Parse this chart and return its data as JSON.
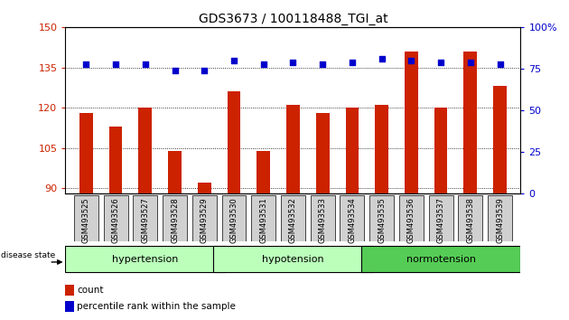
{
  "title": "GDS3673 / 100118488_TGI_at",
  "samples": [
    "GSM493525",
    "GSM493526",
    "GSM493527",
    "GSM493528",
    "GSM493529",
    "GSM493530",
    "GSM493531",
    "GSM493532",
    "GSM493533",
    "GSM493534",
    "GSM493535",
    "GSM493536",
    "GSM493537",
    "GSM493538",
    "GSM493539"
  ],
  "counts": [
    118,
    113,
    120,
    104,
    92,
    126,
    104,
    121,
    118,
    120,
    121,
    141,
    120,
    141,
    128
  ],
  "percentile": [
    78,
    78,
    78,
    74,
    74,
    80,
    78,
    79,
    78,
    79,
    81,
    80,
    79,
    79,
    78
  ],
  "groups": [
    {
      "label": "hypertension",
      "start": 0,
      "end": 5
    },
    {
      "label": "hypotension",
      "start": 5,
      "end": 10
    },
    {
      "label": "normotension",
      "start": 10,
      "end": 15
    }
  ],
  "group_colors": [
    "#bbffbb",
    "#bbffbb",
    "#55cc55"
  ],
  "ylim_left": [
    88,
    150
  ],
  "ylim_right": [
    0,
    100
  ],
  "yticks_left": [
    90,
    105,
    120,
    135,
    150
  ],
  "yticks_right": [
    0,
    25,
    50,
    75,
    100
  ],
  "bar_color": "#cc2200",
  "dot_color": "#0000cc",
  "bg_color": "#ffffff",
  "tick_bg": "#d0d0d0",
  "left_axis_color": "#cc2200",
  "right_axis_color": "#0000cc",
  "figsize": [
    6.3,
    3.54
  ],
  "dpi": 100
}
